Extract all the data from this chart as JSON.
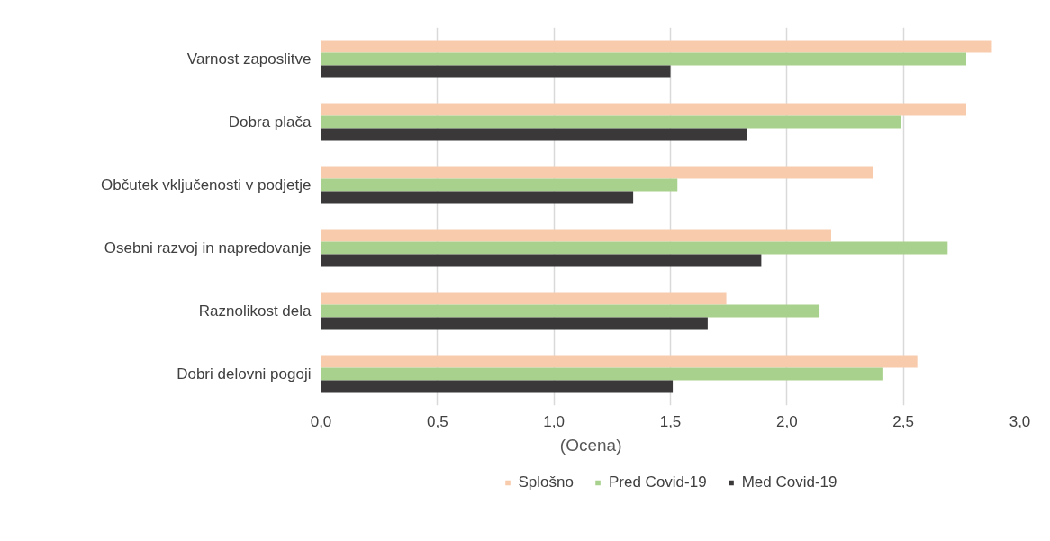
{
  "chart_data": {
    "type": "bar",
    "orientation": "horizontal",
    "xlabel": "(Ocena)",
    "categories": [
      "Varnost zaposlitve",
      "Dobra plača",
      "Občutek vključenosti v podjetje",
      "Osebni razvoj in napredovanje",
      "Raznolikost dela",
      "Dobri delovni pogoji"
    ],
    "series": [
      {
        "name": "Splošno",
        "color": "#f8cbad",
        "values": [
          2.88,
          2.77,
          2.37,
          2.19,
          1.74,
          2.56
        ]
      },
      {
        "name": "Pred Covid-19",
        "color": "#a9d18e",
        "values": [
          2.77,
          2.49,
          1.53,
          2.69,
          2.14,
          2.41
        ]
      },
      {
        "name": "Med Covid-19",
        "color": "#3a3838",
        "values": [
          1.5,
          1.83,
          1.34,
          1.89,
          1.66,
          1.51
        ]
      }
    ],
    "xlim": [
      0,
      3
    ],
    "xticks": [
      {
        "value": 0,
        "label": "0,0"
      },
      {
        "value": 0.5,
        "label": "0,5"
      },
      {
        "value": 1,
        "label": "1,0"
      },
      {
        "value": 1.5,
        "label": "1,5"
      },
      {
        "value": 2,
        "label": "2,0"
      },
      {
        "value": 2.5,
        "label": "2,5"
      },
      {
        "value": 3,
        "label": "3,0"
      }
    ],
    "grid": "x",
    "legend": "bottom"
  }
}
